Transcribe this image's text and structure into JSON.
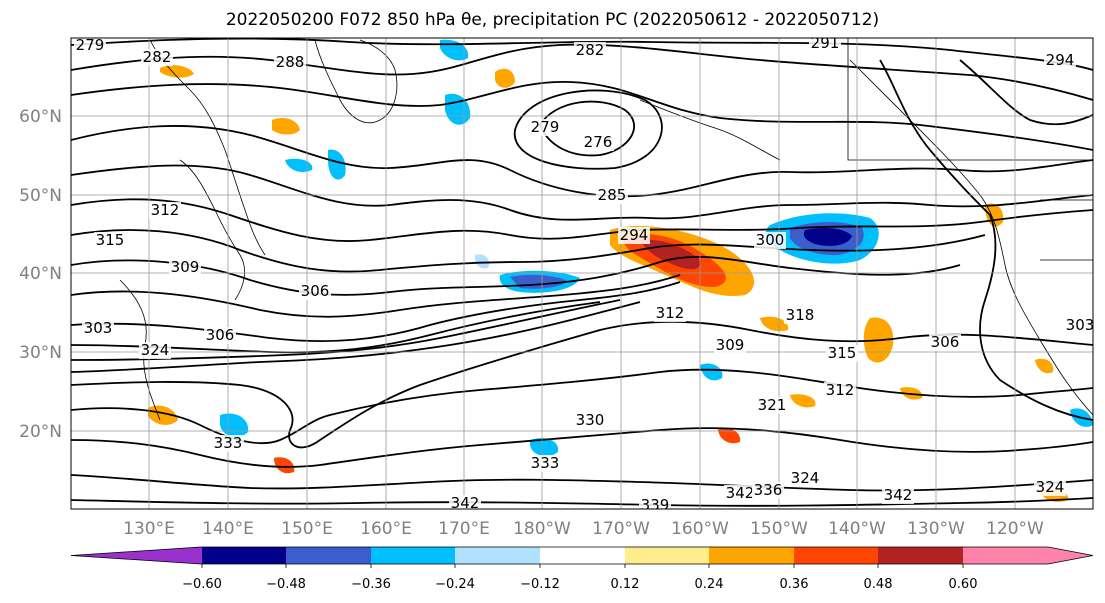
{
  "title": "2022050200 F072 850 hPa θe, precipitation PC (2022050612 - 2022050712)",
  "map": {
    "lat_ticks": [
      "60°N",
      "50°N",
      "40°N",
      "30°N",
      "20°N"
    ],
    "lon_ticks": [
      "130°E",
      "140°E",
      "150°E",
      "160°E",
      "170°E",
      "180°W",
      "170°W",
      "160°W",
      "150°W",
      "140°W",
      "130°W",
      "120°W"
    ],
    "contour_labels": [
      "279",
      "282",
      "288",
      "282",
      "291",
      "294",
      "276",
      "279",
      "285",
      "294",
      "300",
      "312",
      "315",
      "309",
      "306",
      "303",
      "306",
      "312",
      "318",
      "309",
      "315",
      "306",
      "303",
      "324",
      "321",
      "312",
      "330",
      "333",
      "333",
      "342",
      "339",
      "342",
      "336",
      "324",
      "342",
      "324"
    ]
  },
  "colorbar": {
    "ticks": [
      "−0.60",
      "−0.48",
      "−0.36",
      "−0.24",
      "−0.12",
      "0.12",
      "0.24",
      "0.36",
      "0.48",
      "0.60"
    ],
    "colors": [
      "#9932cc",
      "#00008b",
      "#3a5fcd",
      "#00bfff",
      "#b0e2ff",
      "#ffffff",
      "#ffec8b",
      "#ffa500",
      "#ff4500",
      "#b22222",
      "#ff82ab"
    ]
  }
}
